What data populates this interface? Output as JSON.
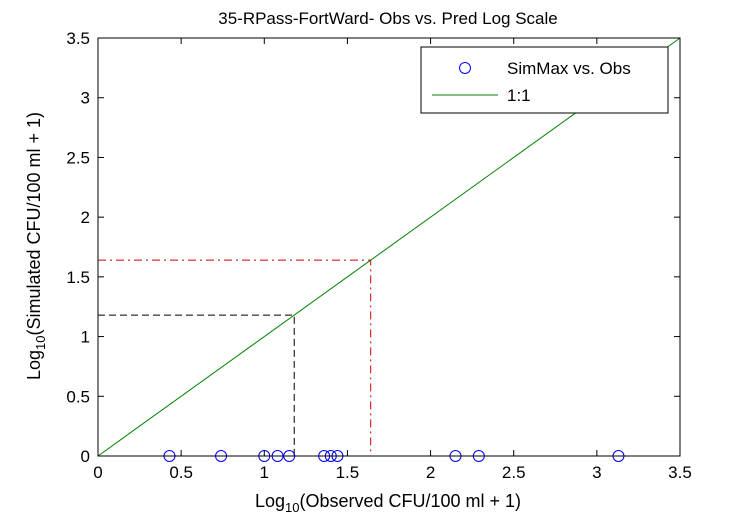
{
  "chart_data": {
    "type": "scatter",
    "title": "35-RPass-FortWard- Obs vs. Pred Log Scale",
    "xlabel_prefix": "Log",
    "xlabel_sub": "10",
    "xlabel_rest": "(Observed CFU/100 ml + 1)",
    "ylabel_prefix": "Log",
    "ylabel_sub": "10",
    "ylabel_rest": "(Simulated CFU/100 ml + 1)",
    "xlim": [
      0,
      3.5
    ],
    "ylim": [
      0,
      3.5
    ],
    "xticks": [
      0,
      0.5,
      1,
      1.5,
      2,
      2.5,
      3,
      3.5
    ],
    "xtick_labels": [
      "0",
      "0.5",
      "1",
      "1.5",
      "2",
      "2.5",
      "3",
      "3.5"
    ],
    "yticks": [
      0,
      0.5,
      1,
      1.5,
      2,
      2.5,
      3,
      3.5
    ],
    "ytick_labels": [
      "0",
      "0.5",
      "1",
      "1.5",
      "2",
      "2.5",
      "3",
      "3.5"
    ],
    "grid": false,
    "legend_position": "top-right",
    "series": [
      {
        "name": "SimMax vs. Obs",
        "kind": "scatter",
        "marker": "circle-open",
        "color": "#0000ff",
        "x": [
          0.43,
          0.74,
          1.0,
          1.08,
          1.15,
          1.36,
          1.4,
          1.44,
          2.15,
          2.29,
          3.13
        ],
        "y": [
          0,
          0,
          0,
          0,
          0,
          0,
          0,
          0,
          0,
          0,
          0
        ]
      },
      {
        "name": "1:1",
        "kind": "line",
        "color": "#008000",
        "x": [
          0,
          3.5
        ],
        "y": [
          0,
          3.5
        ]
      }
    ],
    "reference_lines": [
      {
        "value": 1.18,
        "color": "#000000",
        "dash": "dashed"
      },
      {
        "value": 1.64,
        "color": "#cc0000",
        "dash": "dashdot"
      }
    ]
  }
}
